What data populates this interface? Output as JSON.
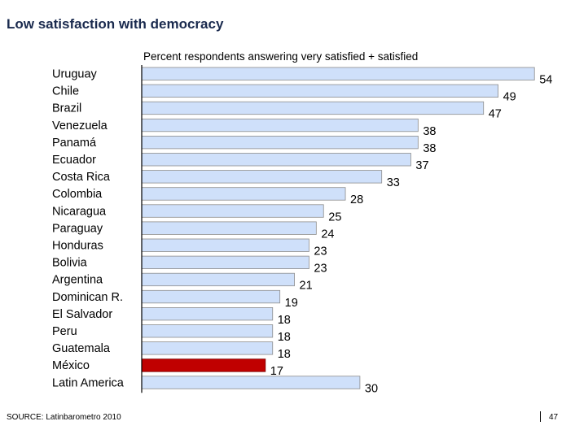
{
  "header": {
    "title": "Low satisfaction with democracy"
  },
  "chart_data": {
    "type": "bar",
    "orientation": "horizontal",
    "title": "Low satisfaction with democracy",
    "subtitle": "Percent respondents answering very satisfied + satisfied",
    "categories": [
      "Uruguay",
      "Chile",
      "Brazil",
      "Venezuela",
      "Panamá",
      "Ecuador",
      "Costa Rica",
      "Colombia",
      "Nicaragua",
      "Paraguay",
      "Honduras",
      "Bolivia",
      "Argentina",
      "Dominican R.",
      "El Salvador",
      "Peru",
      "Guatemala",
      "México",
      "Latin America"
    ],
    "values": [
      54,
      49,
      47,
      38,
      38,
      37,
      33,
      28,
      25,
      24,
      23,
      23,
      21,
      19,
      18,
      18,
      18,
      17,
      30
    ],
    "highlight_category": "México",
    "colors": {
      "bar": "#cfe0fa",
      "bar_border": "#8c8c8c",
      "highlight": "#c00000",
      "axis": "#000000",
      "title": "#1a2a4e"
    },
    "grid": false,
    "legend": "none"
  },
  "footer": {
    "source": "SOURCE: Latinbarometro 2010",
    "page_number": "47"
  }
}
